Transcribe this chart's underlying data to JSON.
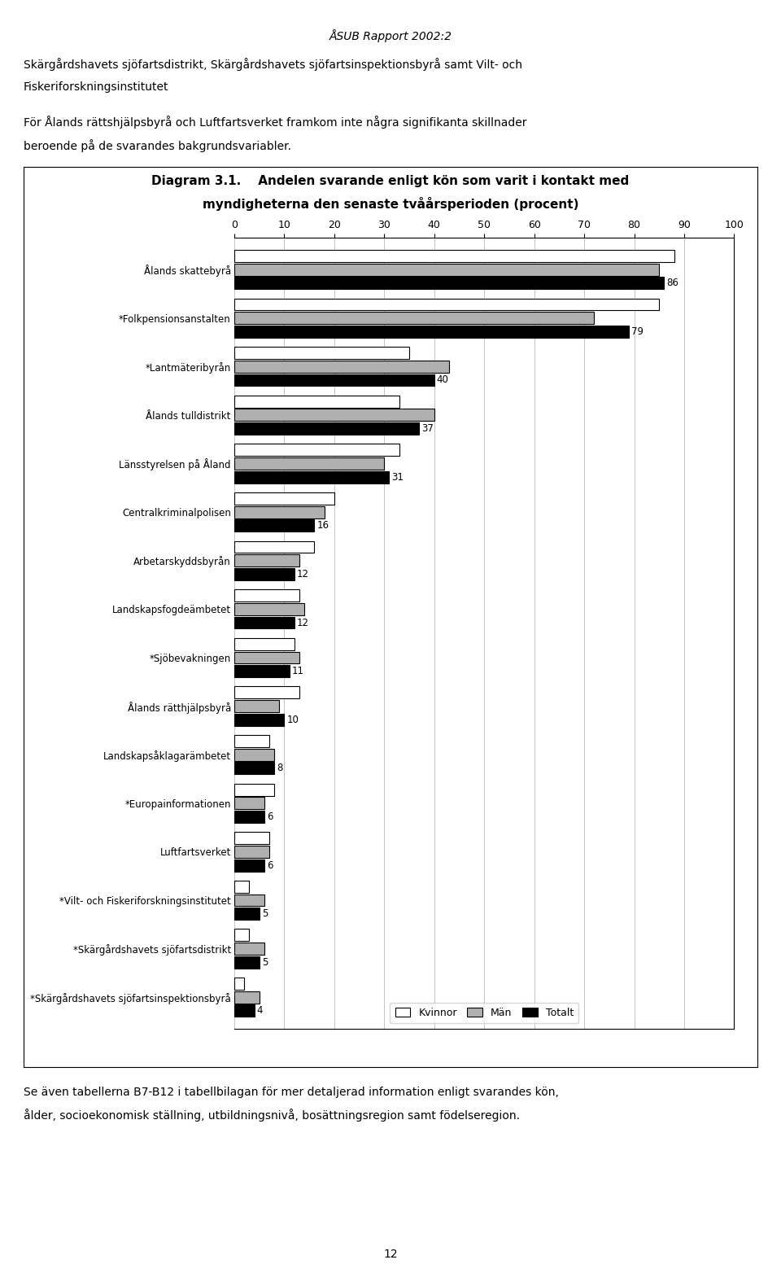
{
  "title_line1": "Diagram 3.1.    Andelen svarande enligt kön som varit i kontakt med",
  "title_line2": "myndigheterna den senaste tvåårsperioden (procent)",
  "header_text": "ÅSUB Rapport 2002:2",
  "top_text1": "Skärgårdshavets sjöfartsdistrikt, Skärgårdshavets sjöfartsinspektionsbyrå samt Vilt- och",
  "top_text2": "Fiskeriforskningsinstitutet",
  "top_text3": "För Ålands rättshjälpsbyrå och Luftfartsverket framkom inte några signifikanta skillnader",
  "top_text4": "beroende på de svarandes bakgrundsvariabler.",
  "bottom_text1": "Se även tabellerna B7-B12 i tabellbilagan för mer detaljerad information enligt svarandes kön,",
  "bottom_text2": "ålder, socioekonomisk ställning, utbildningsnivå, bosättningsregion samt födelseregion.",
  "page_number": "12",
  "categories": [
    "Ålands skattebyrå",
    "*Folkpensionsanstalten",
    "*Lantmäteribyrån",
    "Ålands tulldistrikt",
    "Länsstyrelsen på Åland",
    "Centralkriminalpolisen",
    "Arbetarskyddsbyrån",
    "Landskapsfogdeämbetet",
    "*Sjöbevakningen",
    "Ålands rätthjälpsbyrå",
    "Landskapsåklagarämbetet",
    "*Europainformationen",
    "Luftfartsverket",
    "*Vilt- och Fiskeriforskningsinstitutet",
    "*Skärgårdshavets sjöfartsdistrikt",
    "*Skärgårdshavets sjöfartsinspektionsbyrå"
  ],
  "kvinnor": [
    88,
    85,
    35,
    33,
    33,
    20,
    16,
    13,
    12,
    13,
    7,
    8,
    7,
    3,
    3,
    2
  ],
  "man": [
    85,
    72,
    43,
    40,
    30,
    18,
    13,
    14,
    13,
    9,
    8,
    6,
    7,
    6,
    6,
    5
  ],
  "totalt": [
    86,
    79,
    40,
    37,
    31,
    16,
    12,
    12,
    11,
    10,
    8,
    6,
    6,
    5,
    5,
    4
  ],
  "totalt_labels": [
    86,
    79,
    40,
    37,
    31,
    16,
    12,
    12,
    11,
    10,
    8,
    6,
    6,
    5,
    5,
    4
  ],
  "color_kvinnor": "#ffffff",
  "color_man": "#b0b0b0",
  "color_totalt": "#000000",
  "bar_edge_color": "#000000",
  "xlim": [
    0,
    100
  ],
  "xticks": [
    0,
    10,
    20,
    30,
    40,
    50,
    60,
    70,
    80,
    90,
    100
  ],
  "legend_labels": [
    "Kvinnor",
    "Män",
    "Totalt"
  ],
  "legend_colors": [
    "#ffffff",
    "#b0b0b0",
    "#000000"
  ],
  "font_size_title": 11,
  "font_size_labels": 9,
  "font_size_ticks": 9,
  "font_size_values": 9,
  "background_color": "#ffffff"
}
